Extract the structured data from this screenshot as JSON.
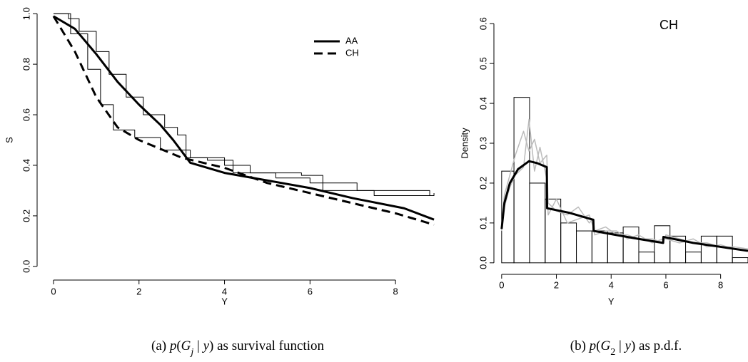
{
  "chart_data": [
    {
      "type": "line",
      "x_label": "Y",
      "y_label": "S",
      "xlim": [
        -0.3,
        9.3
      ],
      "ylim": [
        -0.04,
        1.04
      ],
      "xticks": [
        0,
        2,
        4,
        6,
        8
      ],
      "yticks": [
        {
          "value": 0,
          "label": "0.0"
        },
        0.2,
        0.4,
        0.6,
        0.8,
        {
          "value": 1,
          "label": "1.0"
        }
      ],
      "legend": "top-right",
      "series": [
        {
          "name": "AA",
          "color": "#000000",
          "linewidth": 3,
          "dash": false,
          "x": [
            0,
            0.5,
            1,
            1.5,
            2,
            2.5,
            2.8,
            3.2,
            4,
            5,
            6,
            7,
            8.2,
            8.9
          ],
          "values": [
            0.99,
            0.94,
            0.84,
            0.73,
            0.64,
            0.56,
            0.5,
            0.41,
            0.37,
            0.34,
            0.31,
            0.27,
            0.23,
            0.185
          ]
        },
        {
          "name": "CH",
          "color": "#000000",
          "linewidth": 3,
          "dash": true,
          "x": [
            0,
            0.5,
            1,
            1.5,
            2,
            3,
            4,
            5,
            6,
            7,
            8,
            8.9
          ],
          "values": [
            0.99,
            0.85,
            0.67,
            0.55,
            0.5,
            0.43,
            0.39,
            0.33,
            0.29,
            0.25,
            0.21,
            0.165
          ]
        },
        {
          "color": "#000000",
          "linewidth": 1,
          "step": true,
          "x": [
            0,
            0.35,
            0.6,
            1.0,
            1.3,
            1.7,
            2.1,
            2.6,
            2.9,
            3.1,
            3.6,
            4.2,
            5.8,
            6.3,
            7.5,
            8.9
          ],
          "values": [
            1.0,
            0.98,
            0.93,
            0.85,
            0.76,
            0.67,
            0.6,
            0.55,
            0.52,
            0.43,
            0.42,
            0.37,
            0.36,
            0.3,
            0.28,
            0.29
          ]
        },
        {
          "color": "#000000",
          "linewidth": 1,
          "step": true,
          "x": [
            0,
            0.4,
            0.8,
            1.1,
            1.4,
            1.9,
            2.5,
            3.2,
            4,
            4.6,
            5.2,
            6,
            7.1,
            8.8
          ],
          "values": [
            1.0,
            0.92,
            0.78,
            0.64,
            0.54,
            0.51,
            0.46,
            0.43,
            0.4,
            0.37,
            0.35,
            0.33,
            0.3,
            0.28
          ]
        }
      ],
      "caption": [
        {
          "text": "(a) ",
          "style": "normal"
        },
        {
          "text": "p",
          "style": "italic"
        },
        {
          "text": "(",
          "style": "normal"
        },
        {
          "text": "G",
          "style": "italic"
        },
        {
          "text": "j",
          "style": "sub-italic"
        },
        {
          "text": " | ",
          "style": "normal"
        },
        {
          "text": "y",
          "style": "italic"
        },
        {
          "text": ") as survival function",
          "style": "normal"
        }
      ]
    },
    {
      "type": "histogram",
      "title": "CH",
      "x_label": "Y",
      "y_label": "Density",
      "xlim": [
        -0.1,
        9.0
      ],
      "ylim": [
        -0.02,
        0.62
      ],
      "xticks": [
        0,
        2,
        4,
        6,
        8
      ],
      "yticks": [
        {
          "value": 0,
          "label": "0.0"
        },
        0.1,
        0.2,
        0.3,
        0.4,
        0.5,
        0.6
      ],
      "bins": [
        0,
        0.45,
        1.02,
        1.59,
        2.16,
        2.73,
        3.3,
        3.87,
        4.44,
        5.01,
        5.58,
        6.15,
        6.72,
        7.29,
        7.86,
        8.43,
        9.0
      ],
      "values": [
        0.23,
        0.415,
        0.2,
        0.16,
        0.1,
        0.08,
        0.08,
        0.075,
        0.09,
        0.027,
        0.093,
        0.067,
        0.027,
        0.067,
        0.067,
        0.013
      ],
      "edgecolor": "#000000",
      "series": [
        {
          "color": "#bbbbbb",
          "linewidth": 1.5,
          "x": [
            0,
            0.1,
            0.3,
            0.5,
            0.8,
            1.0,
            1.2,
            1.4,
            1.65,
            1.7,
            2.0,
            2.4,
            2.8,
            3.2,
            3.35,
            3.4,
            3.8,
            4.2,
            4.6,
            5.0,
            5.5,
            5.9,
            6.0,
            6.5,
            7.0,
            7.5,
            8.0,
            8.5,
            9.0
          ],
          "values": [
            0.09,
            0.17,
            0.22,
            0.27,
            0.33,
            0.28,
            0.31,
            0.25,
            0.27,
            0.15,
            0.13,
            0.12,
            0.14,
            0.1,
            0.11,
            0.08,
            0.09,
            0.07,
            0.07,
            0.06,
            0.06,
            0.05,
            0.07,
            0.06,
            0.05,
            0.05,
            0.04,
            0.04,
            0.035
          ]
        },
        {
          "color": "#bbbbbb",
          "linewidth": 1.5,
          "x": [
            0,
            0.1,
            0.3,
            0.5,
            0.8,
            1.0,
            1.2,
            1.4,
            1.65,
            1.7,
            2.0,
            2.4,
            2.8,
            3.2,
            3.35,
            3.4,
            3.8,
            4.2,
            4.6,
            5.0,
            5.5,
            5.9,
            6.0,
            6.5,
            7.0,
            7.5,
            8.0,
            8.5,
            9.0
          ],
          "values": [
            0.08,
            0.14,
            0.19,
            0.22,
            0.24,
            0.36,
            0.23,
            0.29,
            0.21,
            0.12,
            0.16,
            0.1,
            0.11,
            0.12,
            0.09,
            0.07,
            0.08,
            0.08,
            0.06,
            0.07,
            0.05,
            0.06,
            0.06,
            0.05,
            0.06,
            0.04,
            0.045,
            0.035,
            0.03
          ]
        },
        {
          "color": "#000000",
          "linewidth": 3,
          "x": [
            0,
            0.1,
            0.3,
            0.6,
            1.0,
            1.3,
            1.65,
            1.66,
            2.5,
            3.35,
            3.36,
            4.0,
            5.0,
            5.9,
            5.91,
            7.0,
            8.0,
            9.0
          ],
          "values": [
            0.085,
            0.15,
            0.2,
            0.235,
            0.255,
            0.25,
            0.24,
            0.137,
            0.125,
            0.108,
            0.08,
            0.072,
            0.06,
            0.05,
            0.065,
            0.05,
            0.04,
            0.03
          ]
        }
      ],
      "caption": [
        {
          "text": "(b) ",
          "style": "normal"
        },
        {
          "text": "p",
          "style": "italic"
        },
        {
          "text": "(",
          "style": "normal"
        },
        {
          "text": "G",
          "style": "italic"
        },
        {
          "text": "2",
          "style": "sub"
        },
        {
          "text": " | ",
          "style": "normal"
        },
        {
          "text": "y",
          "style": "italic"
        },
        {
          "text": ") as p.d.f.",
          "style": "normal"
        }
      ]
    }
  ]
}
